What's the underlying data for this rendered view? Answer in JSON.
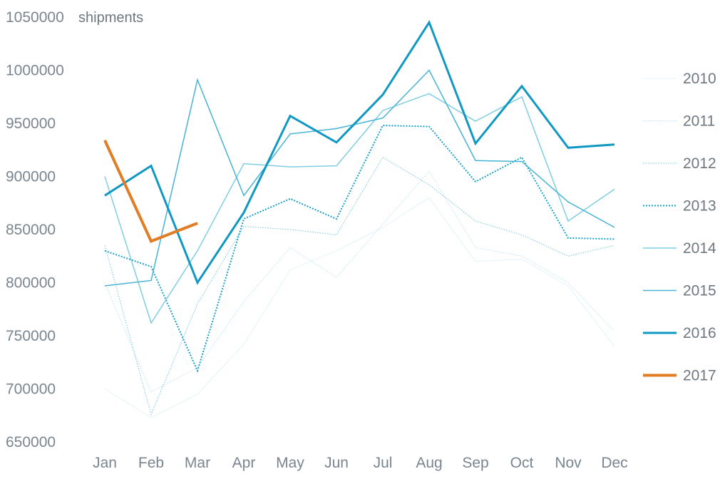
{
  "chart_data": {
    "type": "line",
    "title": "",
    "unit_label": "shipments",
    "xlabel": "",
    "ylabel": "",
    "categories": [
      "Jan",
      "Feb",
      "Mar",
      "Apr",
      "May",
      "Jun",
      "Jul",
      "Aug",
      "Sep",
      "Oct",
      "Nov",
      "Dec"
    ],
    "y_ticks": [
      650000,
      700000,
      750000,
      800000,
      850000,
      900000,
      950000,
      1000000,
      1050000
    ],
    "y_tick_labels": [
      "650000",
      "700000",
      "750000",
      "800000",
      "850000",
      "900000",
      "950000",
      "1000000",
      "1050000"
    ],
    "ylim": [
      650000,
      1050000
    ],
    "grid": false,
    "legend_position": "right",
    "series": [
      {
        "name": "2010",
        "color": "#e3f3f8",
        "style": "solid",
        "width": 1,
        "values": [
          700000,
          673000,
          695000,
          742000,
          812000,
          830000,
          852000,
          880000,
          820000,
          822000,
          797000,
          740000
        ]
      },
      {
        "name": "2011",
        "color": "#b9e2ee",
        "style": "dotted",
        "width": 1,
        "values": [
          800000,
          697000,
          720000,
          782000,
          833000,
          805000,
          855000,
          905000,
          833000,
          825000,
          800000,
          754000
        ]
      },
      {
        "name": "2012",
        "color": "#6ec3da",
        "style": "dotted",
        "width": 1,
        "values": [
          835000,
          676000,
          780000,
          853000,
          850000,
          845000,
          918000,
          892000,
          858000,
          845000,
          825000,
          835000
        ]
      },
      {
        "name": "2013",
        "color": "#1aa1c7",
        "style": "dotted",
        "width": 2,
        "values": [
          830000,
          815000,
          717000,
          860000,
          879000,
          860000,
          948000,
          947000,
          895000,
          918000,
          842000,
          841000
        ]
      },
      {
        "name": "2014",
        "color": "#7fcde2",
        "style": "solid",
        "width": 1.5,
        "values": [
          900000,
          762000,
          830000,
          912000,
          909000,
          910000,
          962000,
          978000,
          952000,
          975000,
          858000,
          888000
        ]
      },
      {
        "name": "2015",
        "color": "#45b3d3",
        "style": "solid",
        "width": 1.5,
        "values": [
          797000,
          802000,
          991000,
          882000,
          940000,
          945000,
          955000,
          1000000,
          915000,
          914000,
          876000,
          852000
        ]
      },
      {
        "name": "2016",
        "color": "#1198c2",
        "style": "solid",
        "width": 3,
        "values": [
          882000,
          910000,
          800000,
          866000,
          957000,
          932000,
          977000,
          1045000,
          931000,
          985000,
          927000,
          930000
        ]
      },
      {
        "name": "2017",
        "color": "#e07d26",
        "style": "solid",
        "width": 4,
        "values": [
          934000,
          839000,
          856000,
          null,
          null,
          null,
          null,
          null,
          null,
          null,
          null,
          null
        ]
      }
    ]
  }
}
